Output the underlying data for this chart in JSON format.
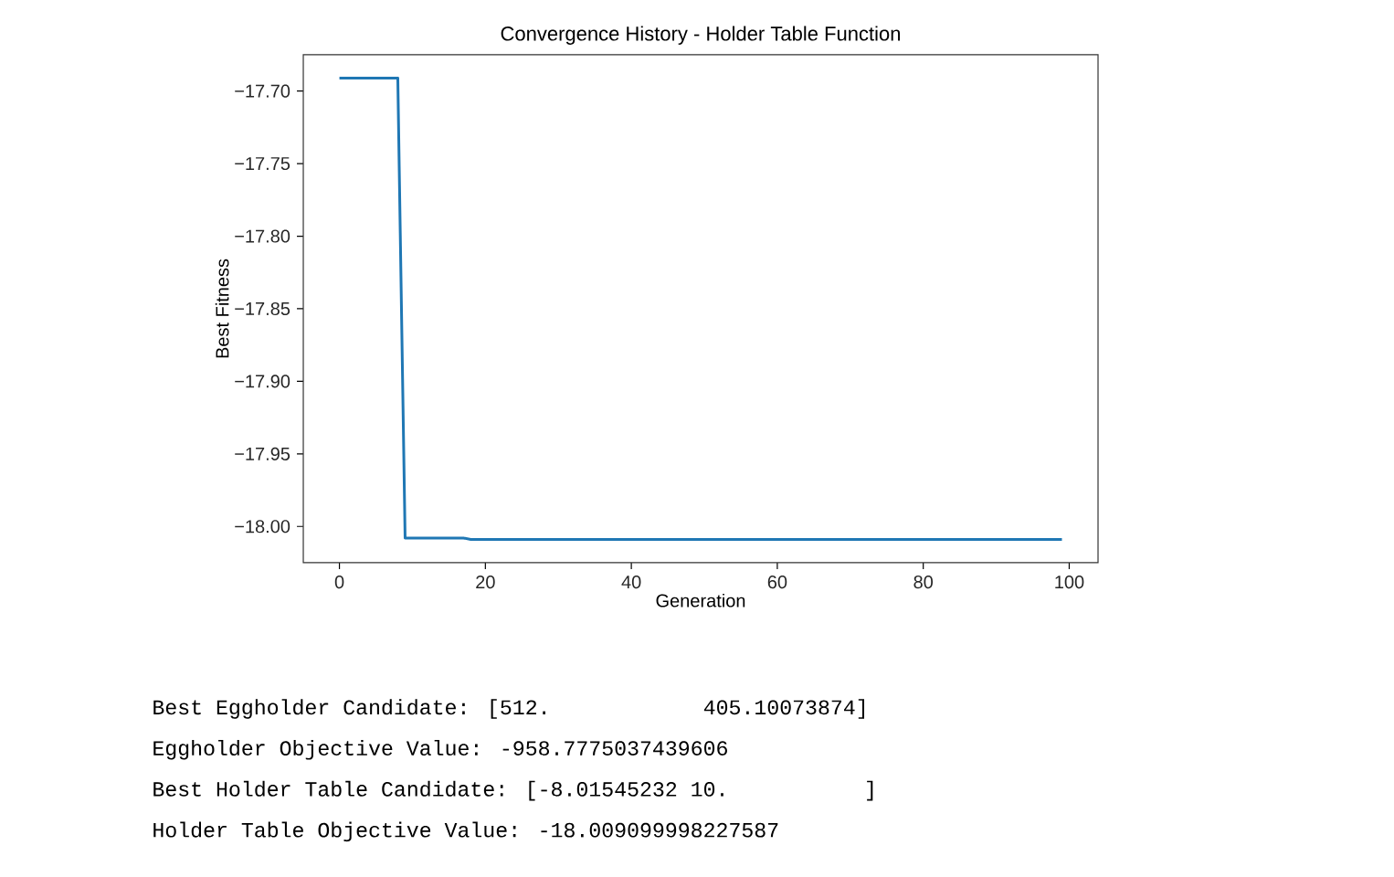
{
  "chart_data": {
    "type": "line",
    "title": "Convergence History - Holder Table Function",
    "xlabel": "Generation",
    "ylabel": "Best Fitness",
    "x": [
      0,
      8,
      9,
      17,
      18,
      99
    ],
    "series": [
      {
        "color": "#1f77b4",
        "values": [
          -17.691,
          -17.691,
          -18.008,
          -18.008,
          -18.009,
          -18.009
        ]
      }
    ],
    "xlim": [
      -4.95,
      103.95
    ],
    "ylim": [
      -18.025,
      -17.675
    ],
    "xticks": [
      0,
      20,
      40,
      60,
      80,
      100
    ],
    "yticks": [
      {
        "value": -18.0,
        "label": "−18.00"
      },
      {
        "value": -17.95,
        "label": "−17.95"
      },
      {
        "value": -17.9,
        "label": "−17.90"
      },
      {
        "value": -17.85,
        "label": "−17.85"
      },
      {
        "value": -17.8,
        "label": "−17.80"
      },
      {
        "value": -17.75,
        "label": "−17.75"
      },
      {
        "value": -17.7,
        "label": "−17.70"
      }
    ],
    "annotations": [
      "Best Eggholder Candidate: [512.         405.10073874]",
      "Eggholder Objective Value: -958.7775037439606",
      "Best Holder Table Candidate: [-8.01545232 10.        ]",
      "Holder Table Objective Value: -18.009099998227587"
    ]
  }
}
